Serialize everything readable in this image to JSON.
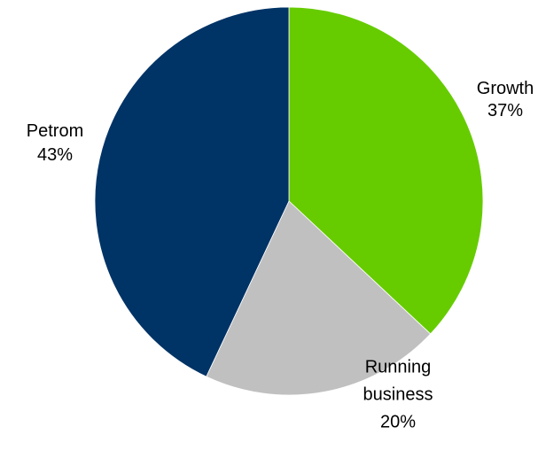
{
  "chart_data": {
    "type": "pie",
    "slices": [
      {
        "label": "Growth",
        "value": 37,
        "value_label": "37%",
        "color": "#66cc00"
      },
      {
        "label": [
          "Running",
          "business"
        ],
        "value": 20,
        "value_label": "20%",
        "color": "#c0c0c0"
      },
      {
        "label": "Petrom",
        "value": 43,
        "value_label": "43%",
        "color": "#003366"
      }
    ],
    "start": "12 o'clock",
    "direction": "clockwise",
    "legend": "none",
    "data_labels": "outside"
  }
}
